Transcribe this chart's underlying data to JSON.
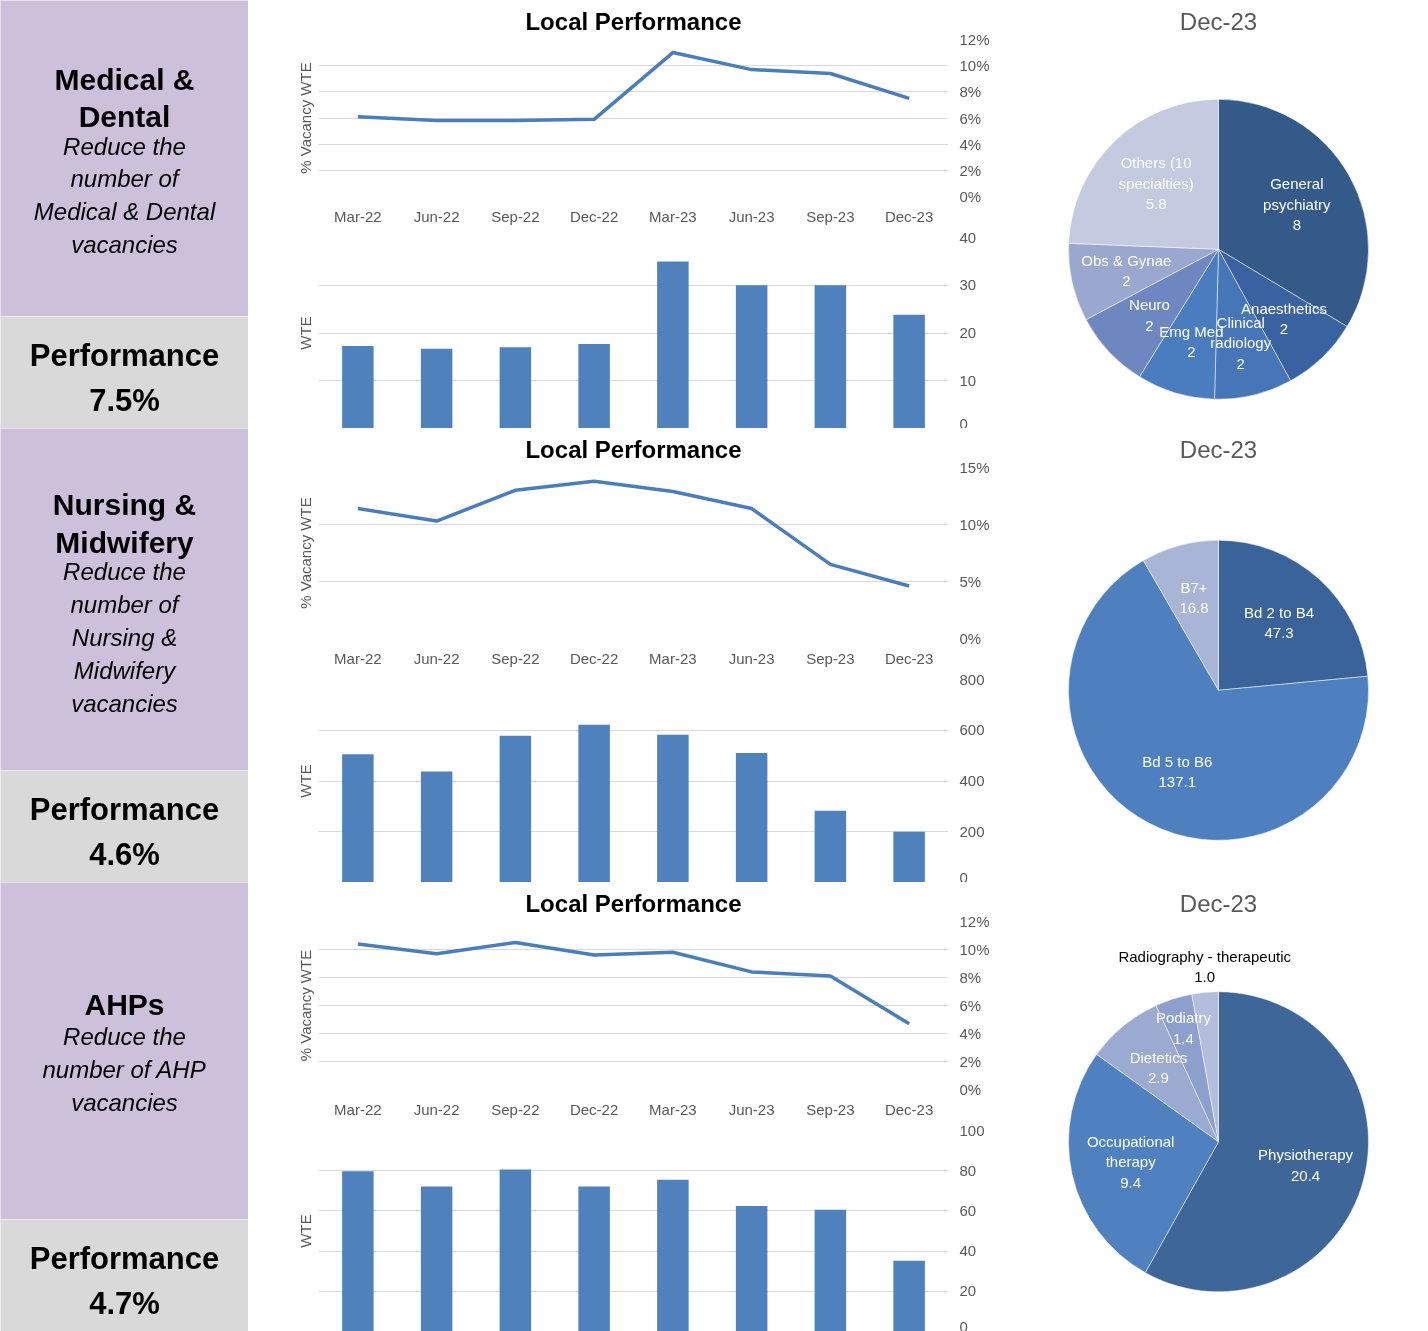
{
  "chart_data": [
    {
      "type": "other",
      "title": "Medical & Dental",
      "subtitle": "Reduce the number of Medical & Dental vacancies",
      "annotations": [
        "Performance",
        "7.5%"
      ],
      "colors": [
        "#ccc0da",
        "#d9d9d9"
      ]
    },
    {
      "type": "line",
      "title": "Local Performance",
      "categories": [
        "Mar-22",
        "Jun-22",
        "Sep-22",
        "Dec-22",
        "Mar-23",
        "Jun-23",
        "Sep-23",
        "Dec-23"
      ],
      "values": [
        6.1,
        5.8,
        5.8,
        5.9,
        11.0,
        9.7,
        9.4,
        7.5
      ],
      "color": "#4a7ebb",
      "ylabel": "% Vacancy WTE",
      "ylim": [
        0,
        12
      ],
      "yticks": [
        {
          "value": 0,
          "label": "0%"
        },
        {
          "value": 2,
          "label": "2%"
        },
        {
          "value": 4,
          "label": "4%"
        },
        {
          "value": 6,
          "label": "6%"
        },
        {
          "value": 8,
          "label": "8%"
        },
        {
          "value": 10,
          "label": "10%"
        },
        {
          "value": 12,
          "label": "12%"
        }
      ],
      "grid": "y"
    },
    {
      "type": "bar",
      "categories": [
        null,
        null,
        null,
        null,
        null,
        null,
        null,
        null
      ],
      "values": [
        17.3,
        16.7,
        17.0,
        17.7,
        35.0,
        30.0,
        30.0,
        23.8
      ],
      "color": "#4f81bd",
      "ylabel": "WTE",
      "ylim": [
        0,
        40
      ],
      "yticks": [
        0,
        10,
        20,
        30,
        40
      ],
      "grid": "y",
      "tick_labels": "y"
    },
    {
      "type": "pie",
      "title": "Dec-23",
      "categories": [
        "General psychiatry",
        "Anaesthetics",
        "Clinical radiology",
        "Emg Med",
        "Neuro",
        "Obs & Gynae",
        "Others (10 specialties)"
      ],
      "values": [
        8,
        2,
        2,
        2,
        2,
        2,
        5.8
      ],
      "colors": [
        "#335a88",
        "#3b62a0",
        "#4675b8",
        "#4a7cc0",
        "#6f87c1",
        "#9aa8cf",
        "#c4cadf"
      ],
      "data_labels": true
    },
    {
      "type": "other",
      "title": "Nursing & Midwifery",
      "subtitle": "Reduce the number of Nursing & Midwifery vacancies",
      "annotations": [
        "Performance",
        "4.6%"
      ],
      "colors": [
        "#ccc0da",
        "#d9d9d9"
      ]
    },
    {
      "type": "line",
      "title": "Local Performance",
      "categories": [
        "Mar-22",
        "Jun-22",
        "Sep-22",
        "Dec-22",
        "Mar-23",
        "Jun-23",
        "Sep-23",
        "Dec-23"
      ],
      "values": [
        11.4,
        10.3,
        13.0,
        13.8,
        12.9,
        11.4,
        6.5,
        4.6
      ],
      "color": "#4a7ebb",
      "ylabel": "% Vacancy WTE",
      "ylim": [
        0,
        15
      ],
      "yticks": [
        {
          "value": 0,
          "label": "0%"
        },
        {
          "value": 5,
          "label": "5%"
        },
        {
          "value": 10,
          "label": "10%"
        },
        {
          "value": 15,
          "label": "15%"
        }
      ],
      "grid": "y"
    },
    {
      "type": "bar",
      "categories": [
        null,
        null,
        null,
        null,
        null,
        null,
        null,
        null
      ],
      "values": [
        505,
        437,
        578,
        622,
        582,
        510,
        283,
        200
      ],
      "color": "#4f81bd",
      "ylabel": "WTE",
      "ylim": [
        0,
        800
      ],
      "yticks": [
        0,
        200,
        400,
        600,
        800
      ],
      "grid": "y",
      "tick_labels": "y"
    },
    {
      "type": "pie",
      "title": "Dec-23",
      "categories": [
        "Bd 2 to B4",
        "Bd 5 to B6",
        "B7+"
      ],
      "values": [
        47.3,
        137.1,
        16.8
      ],
      "colors": [
        "#3a6399",
        "#4e7fbf",
        "#a9b5d6"
      ],
      "data_labels": true
    },
    {
      "type": "other",
      "title": "AHPs",
      "subtitle": "Reduce the number of AHP vacancies",
      "annotations": [
        "Performance",
        "4.7%"
      ],
      "colors": [
        "#ccc0da",
        "#d9d9d9"
      ]
    },
    {
      "type": "line",
      "title": "Local Performance",
      "categories": [
        "Mar-22",
        "Jun-22",
        "Sep-22",
        "Dec-22",
        "Mar-23",
        "Jun-23",
        "Sep-23",
        "Dec-23"
      ],
      "values": [
        10.4,
        9.7,
        10.5,
        9.6,
        9.8,
        8.4,
        8.1,
        4.7
      ],
      "color": "#4a7ebb",
      "ylabel": "% Vacancy WTE",
      "ylim": [
        0,
        12
      ],
      "yticks": [
        {
          "value": 0,
          "label": "0%"
        },
        {
          "value": 2,
          "label": "2%"
        },
        {
          "value": 4,
          "label": "4%"
        },
        {
          "value": 6,
          "label": "6%"
        },
        {
          "value": 8,
          "label": "8%"
        },
        {
          "value": 10,
          "label": "10%"
        },
        {
          "value": 12,
          "label": "12%"
        }
      ],
      "grid": "y"
    },
    {
      "type": "bar",
      "categories": [
        null,
        null,
        null,
        null,
        null,
        null,
        null,
        null
      ],
      "values": [
        79.7,
        72.2,
        80.6,
        72.2,
        75.5,
        62.4,
        60.6,
        35.2
      ],
      "color": "#4f81bd",
      "ylabel": "WTE",
      "ylim": [
        0,
        100
      ],
      "yticks": [
        0,
        20,
        40,
        60,
        80,
        100
      ],
      "grid": "y",
      "tick_labels": "y"
    },
    {
      "type": "pie",
      "title": "Dec-23",
      "categories": [
        "Physiotherapy",
        "Occupational therapy",
        "Dietetics",
        "Podiatry",
        "Radiography - therapeutic"
      ],
      "values": [
        20.4,
        9.4,
        2.9,
        1.4,
        1.0
      ],
      "value_labels": [
        "20.4",
        "9.4",
        "2.9",
        "1.4",
        "1.0"
      ],
      "colors": [
        "#3e6699",
        "#4f80bf",
        "#9aaad0",
        "#8d9fcc",
        "#b3bedc"
      ],
      "data_labels": true
    }
  ]
}
